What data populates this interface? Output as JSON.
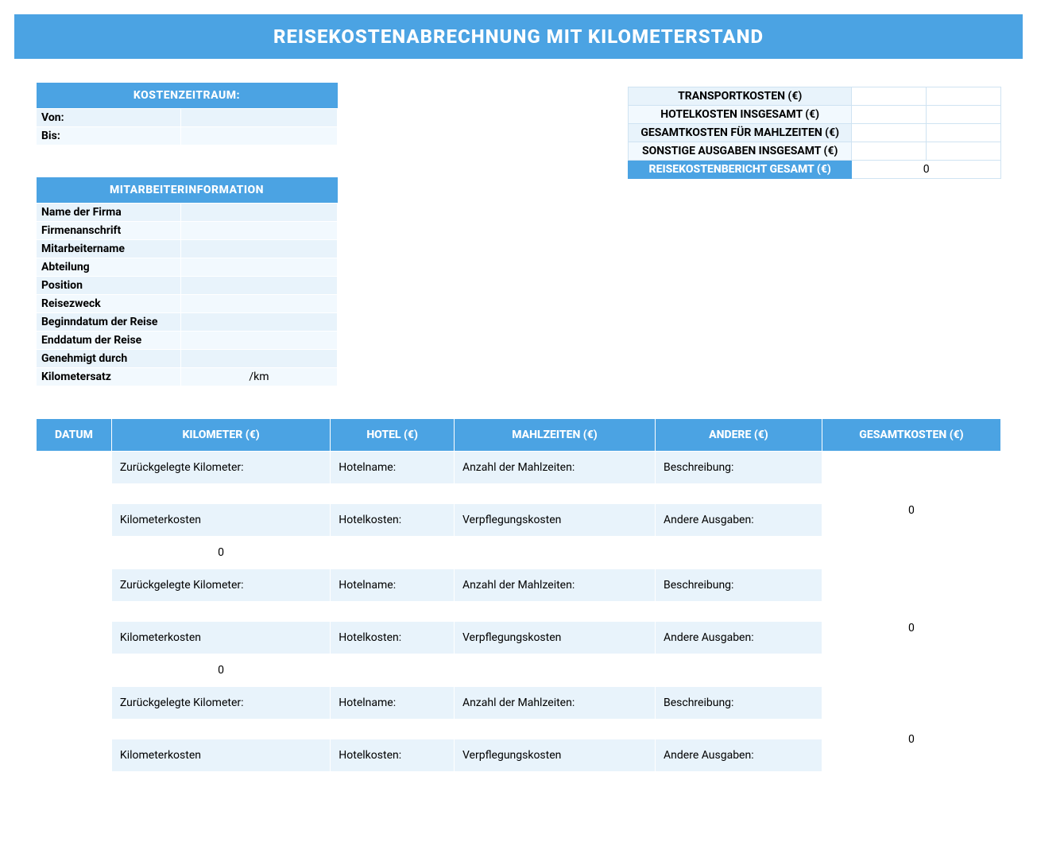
{
  "title": "REISEKOSTENABRECHNUNG MIT KILOMETERSTAND",
  "period": {
    "header": "KOSTENZEITRAUM:",
    "from_label": "Von:",
    "from_value": "",
    "to_label": "Bis:",
    "to_value": ""
  },
  "employee": {
    "header": "MITARBEITERINFORMATION",
    "rows": [
      {
        "label": "Name der Firma",
        "value": ""
      },
      {
        "label": "Firmenanschrift",
        "value": ""
      },
      {
        "label": "Mitarbeitername",
        "value": ""
      },
      {
        "label": "Abteilung",
        "value": ""
      },
      {
        "label": "Position",
        "value": ""
      },
      {
        "label": "Reisezweck",
        "value": ""
      },
      {
        "label": "Beginndatum der Reise",
        "value": ""
      },
      {
        "label": "Enddatum der Reise",
        "value": ""
      },
      {
        "label": "Genehmigt durch",
        "value": ""
      },
      {
        "label": "Kilometersatz",
        "value": "/km"
      }
    ]
  },
  "summary": {
    "rows": [
      {
        "label": "TRANSPORTKOSTEN (€)",
        "v1": "",
        "v2": ""
      },
      {
        "label": "HOTELKOSTEN INSGESAMT (€)",
        "v1": "",
        "v2": ""
      },
      {
        "label": "GESAMTKOSTEN FÜR MAHLZEITEN (€)",
        "v1": "",
        "v2": ""
      },
      {
        "label": "SONSTIGE AUSGABEN INSGESAMT (€)",
        "v1": "",
        "v2": ""
      }
    ],
    "total_label": "REISEKOSTENBERICHT GESAMT (€)",
    "total_value": "0"
  },
  "main": {
    "headers": [
      "DATUM",
      "KILOMETER (€)",
      "HOTEL (€)",
      "MAHLZEITEN (€)",
      "ANDERE (€)",
      "GESAMTKOSTEN (€)"
    ],
    "labels": {
      "km_traveled": "Zurückgelegte Kilometer:",
      "hotel_name": "Hotelname:",
      "meals_count": "Anzahl der Mahlzeiten:",
      "description": "Beschreibung:",
      "km_cost": "Kilometerkosten",
      "hotel_cost": "Hotelkosten:",
      "meal_cost": "Verpflegungskosten",
      "other_cost": "Andere Ausgaben:"
    },
    "rows": [
      {
        "date": "",
        "km": "",
        "hotel": "",
        "meals": "",
        "other": "",
        "km_cost": "0",
        "hotel_cost": "",
        "meal_cost": "",
        "other_cost": "",
        "total": "0"
      },
      {
        "date": "",
        "km": "",
        "hotel": "",
        "meals": "",
        "other": "",
        "km_cost": "0",
        "hotel_cost": "",
        "meal_cost": "",
        "other_cost": "",
        "total": "0"
      },
      {
        "date": "",
        "km": "",
        "hotel": "",
        "meals": "",
        "other": "",
        "km_cost": "",
        "hotel_cost": "",
        "meal_cost": "",
        "other_cost": "",
        "total": "0"
      }
    ]
  },
  "colors": {
    "primary": "#4ba3e3",
    "light1": "#e8f3fb",
    "light2": "#f2f9fe",
    "border": "#cfe3f2",
    "white": "#ffffff"
  }
}
